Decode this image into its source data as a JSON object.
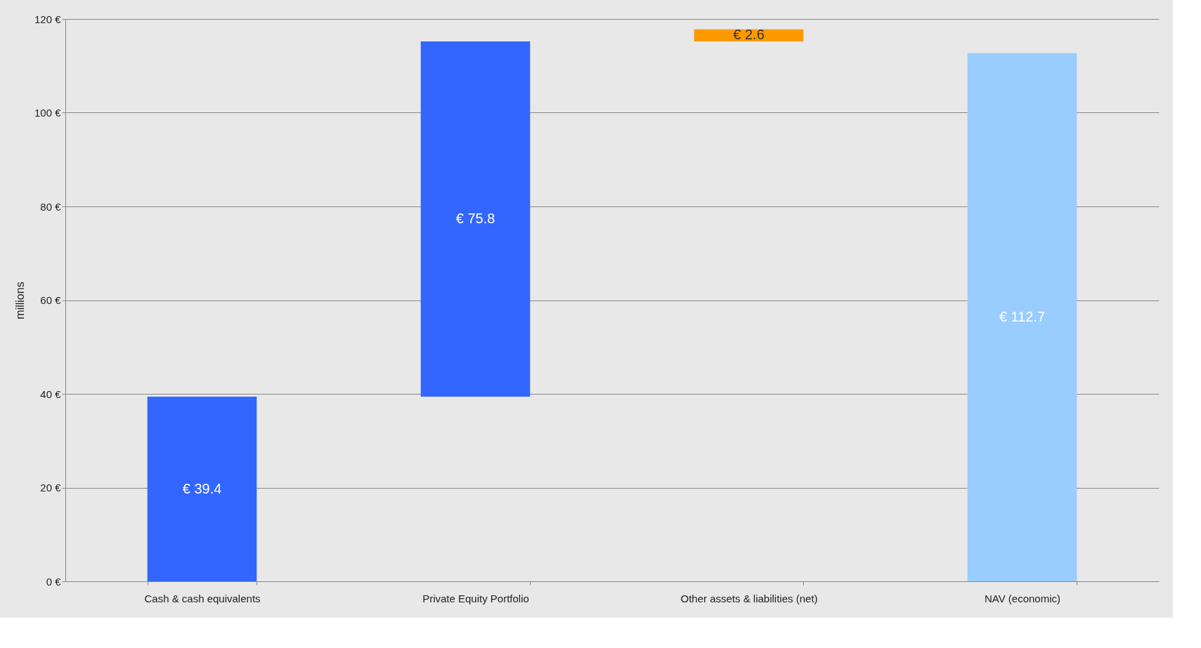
{
  "chart_data": {
    "type": "bar",
    "ylabel": "millions",
    "categories": [
      "Cash & cash equivalents",
      "Private Equity Portfolio",
      "Other assets & liabilities (net)",
      "NAV (economic)"
    ],
    "values": [
      39.4,
      75.8,
      2.6,
      112.7
    ],
    "base": [
      0,
      39.4,
      115.2,
      0
    ],
    "colors": [
      "#3366ff",
      "#3366ff",
      "#ff9900",
      "#99ccff"
    ],
    "value_labels": [
      "€ 39.4",
      "€ 75.8",
      "€ 2.6",
      "€ 112.7"
    ],
    "ylim": [
      0,
      120
    ],
    "yticks": [
      {
        "value": 0,
        "label": "0 €"
      },
      {
        "value": 20,
        "label": "20 €"
      },
      {
        "value": 40,
        "label": "40 €"
      },
      {
        "value": 60,
        "label": "60 €"
      },
      {
        "value": 80,
        "label": "80 €"
      },
      {
        "value": 100,
        "label": "100 €"
      },
      {
        "value": 120,
        "label": "120 €"
      }
    ],
    "grid": "y"
  }
}
